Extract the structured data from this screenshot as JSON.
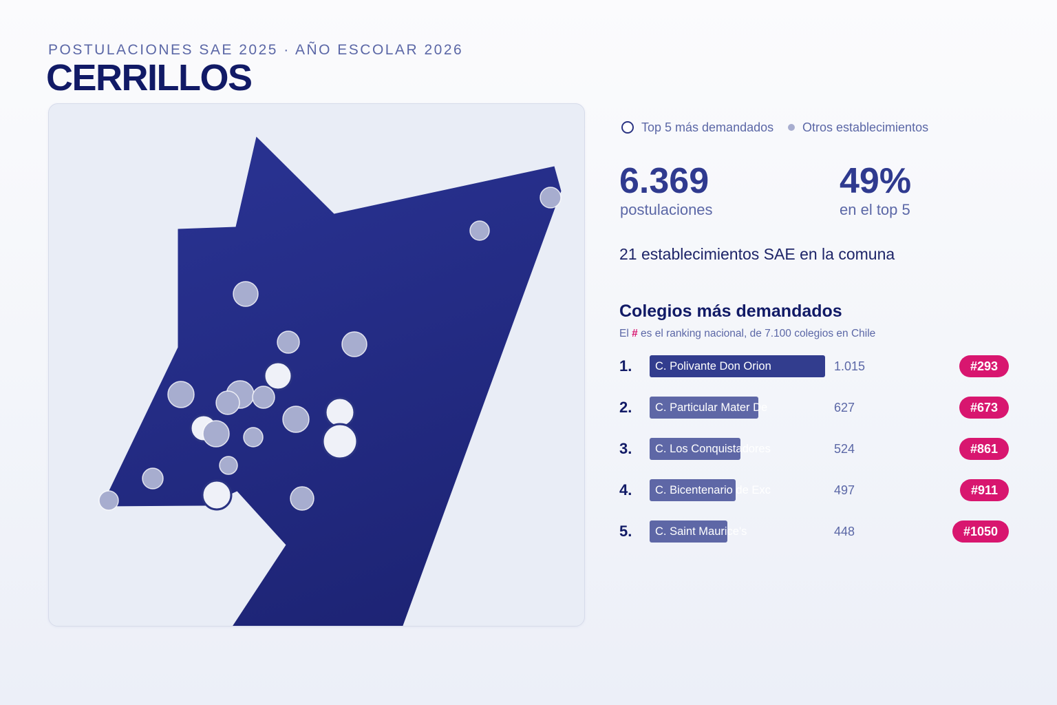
{
  "header": {
    "kicker": "POSTULACIONES SAE 2025 · AÑO ESCOLAR 2026",
    "title": "CERRILLOS"
  },
  "legend": {
    "top5_label": "Top 5 más demandados",
    "top5_icon": "ring-marker-icon",
    "others_label": "Otros establecimientos",
    "others_icon": "dot-marker-icon"
  },
  "stats": {
    "applications": {
      "value": "6.369",
      "label": "postulaciones"
    },
    "top5_share": {
      "value": "49%",
      "label": "en el top 5"
    },
    "summary": "21 establecimientos SAE en la comuna"
  },
  "ranking": {
    "title": "Colegios más demandados",
    "note": {
      "before": "El",
      "hash": "#",
      "after": "es el ranking nacional, de 7.100 colegios en Chile"
    },
    "items": [
      {
        "position": "1.",
        "name": "C. Polivante Don Orion",
        "applications": "1.015",
        "national_rank": "#293"
      },
      {
        "position": "2.",
        "name": "C. Particular Mater De",
        "applications": "627",
        "national_rank": "#673"
      },
      {
        "position": "3.",
        "name": "C. Los Conquistadores",
        "applications": "524",
        "national_rank": "#861"
      },
      {
        "position": "4.",
        "name": "C. Bicentenario de Exc",
        "applications": "497",
        "national_rank": "#911"
      },
      {
        "position": "5.",
        "name": "C. Saint Maurice's",
        "applications": "448",
        "national_rank": "#1050"
      }
    ]
  },
  "colors": {
    "title": "#111a66",
    "accent": "#2f3a8f",
    "muted": "#5b67a6",
    "body": "#1d2468",
    "bar_first": "#323d8e",
    "bar_rest": "#5e67a6",
    "badge": "#d8166f",
    "map_panel": "#e9edf6",
    "map_area_light": "#28318f",
    "map_area_dark": "#1b216f",
    "marker_other": "#a7adcf",
    "marker_top5": "#eff1f8",
    "marker_ring": "#2a3382"
  }
}
